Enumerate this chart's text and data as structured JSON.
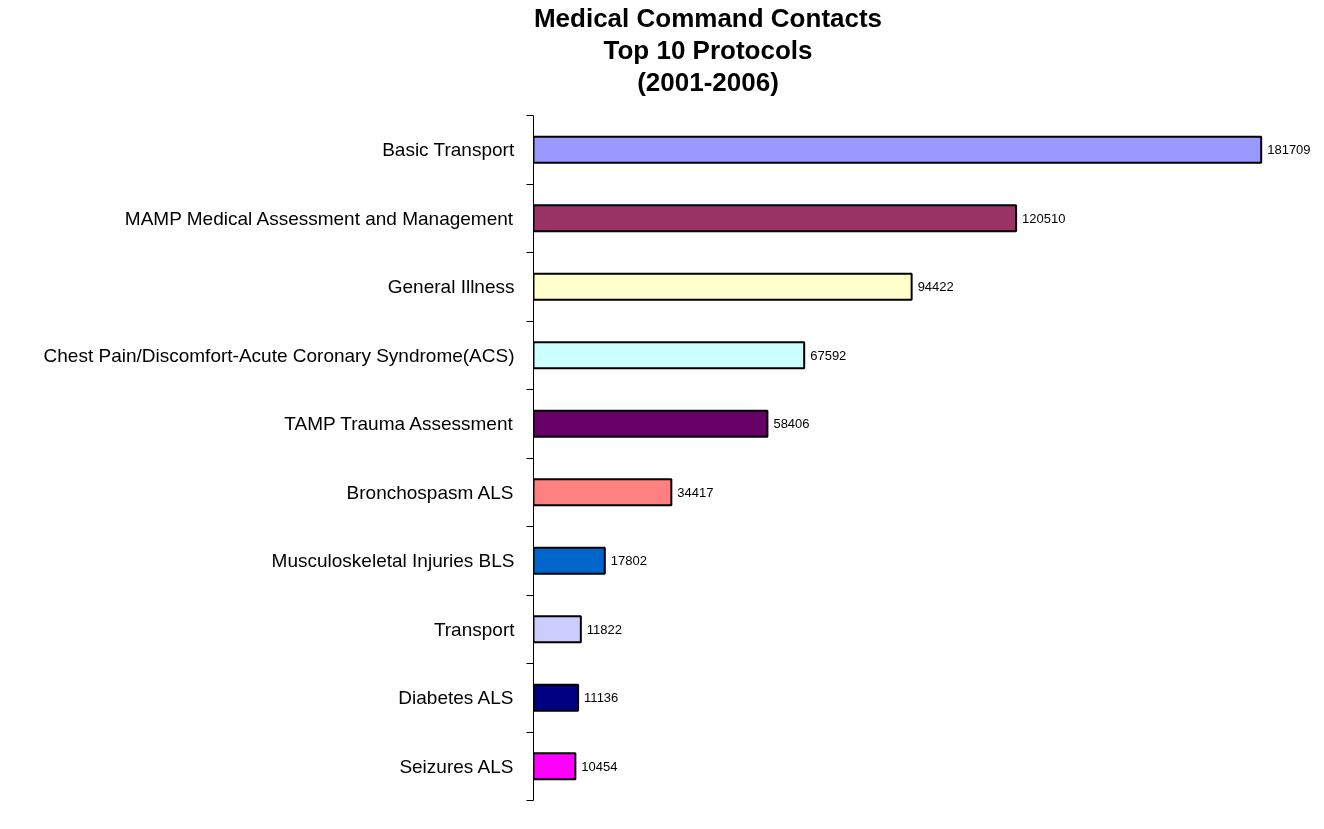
{
  "chart_data": {
    "type": "bar",
    "orientation": "horizontal",
    "title": "Medical Command Contacts\nTop 10 Protocols\n(2001-2006)",
    "categories": [
      "Basic Transport",
      "MAMP Medical Assessment and Management",
      "General Illness",
      "Chest Pain/Discomfort-Acute Coronary Syndrome(ACS)",
      "TAMP Trauma Assessment",
      "Bronchospasm ALS",
      "Musculoskeletal Injuries BLS",
      "Transport",
      "Diabetes ALS",
      "Seizures ALS"
    ],
    "values": [
      181709,
      120510,
      94422,
      67592,
      58406,
      34417,
      17802,
      11822,
      11136,
      10454
    ],
    "colors": [
      "#9999ff",
      "#993366",
      "#ffffcc",
      "#ccffff",
      "#660066",
      "#ff8080",
      "#0066cc",
      "#ccccff",
      "#000080",
      "#ff00ff"
    ],
    "data_labels": true
  }
}
